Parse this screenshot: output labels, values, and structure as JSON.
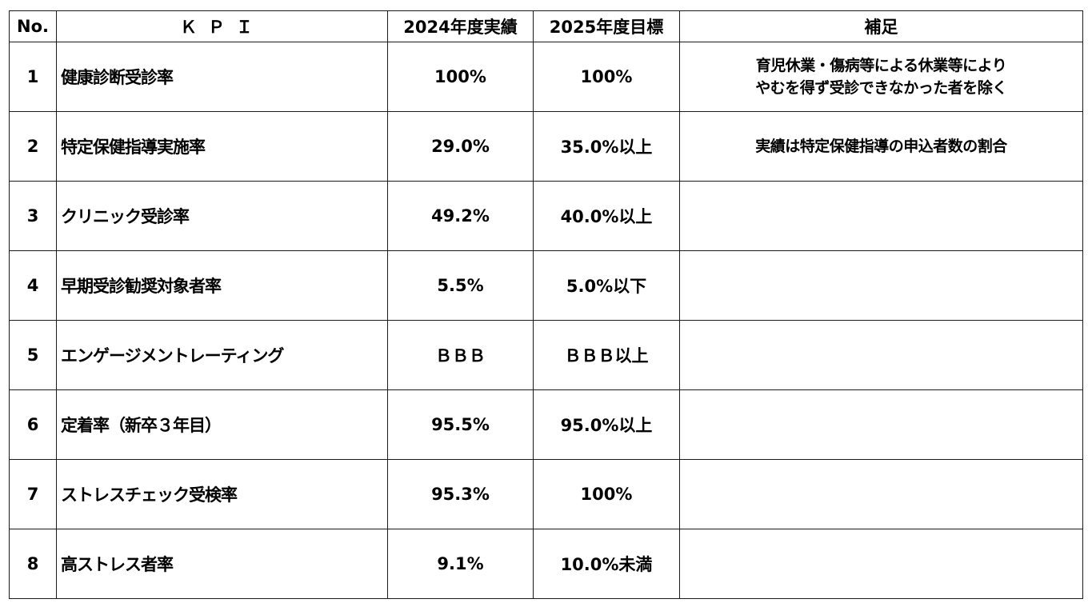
{
  "headers": {
    "no": "No.",
    "kpi": "ＫＰＩ",
    "actual": "2024年度実績",
    "target": "2025年度目標",
    "note": "補足"
  },
  "rows": [
    {
      "no": "1",
      "name": "健康診断受診率",
      "actual": "100%",
      "target": "100%",
      "note_line1": "育児休業・傷病等による休業等により",
      "note_line2": "やむを得ず受診できなかった者を除く"
    },
    {
      "no": "2",
      "name": "特定保健指導実施率",
      "actual": "29.0%",
      "target": "35.0%以上",
      "note_line1": "実績は特定保健指導の申込者数の割合",
      "note_line2": ""
    },
    {
      "no": "3",
      "name": "クリニック受診率",
      "actual": "49.2%",
      "target": "40.0%以上",
      "note_line1": "",
      "note_line2": ""
    },
    {
      "no": "4",
      "name": "早期受診勧奨対象者率",
      "actual": "5.5%",
      "target": "5.0%以下",
      "note_line1": "",
      "note_line2": ""
    },
    {
      "no": "5",
      "name": "エンゲージメントレーティング",
      "actual": "ＢＢＢ",
      "target": "ＢＢＢ以上",
      "note_line1": "",
      "note_line2": ""
    },
    {
      "no": "6",
      "name": "定着率（新卒３年目）",
      "actual": "95.5%",
      "target": "95.0%以上",
      "note_line1": "",
      "note_line2": ""
    },
    {
      "no": "7",
      "name": "ストレスチェック受検率",
      "actual": "95.3%",
      "target": "100%",
      "note_line1": "",
      "note_line2": ""
    },
    {
      "no": "8",
      "name": "高ストレス者率",
      "actual": "9.1%",
      "target": "10.0%未満",
      "note_line1": "",
      "note_line2": ""
    }
  ]
}
